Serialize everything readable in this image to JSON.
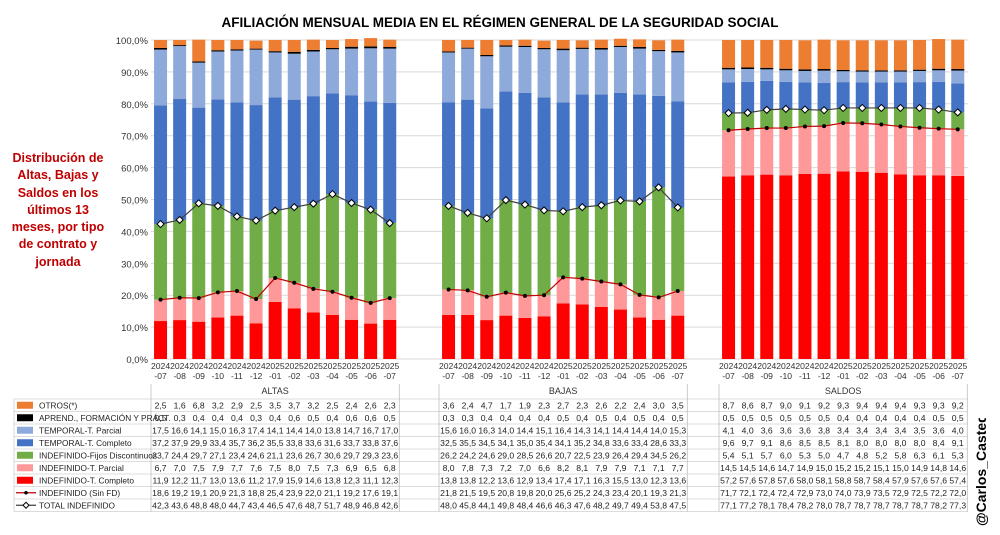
{
  "chart_data": {
    "type": "stacked-bar",
    "title": "AFILIACIÓN MENSUAL MEDIA EN EL RÉGIMEN GENERAL DE LA SEGURIDAD SOCIAL",
    "side_note": "Distribución de Altas, Bajas y Saldos en los últimos 13 meses, por tipo de contrato y jornada",
    "author": "@Carlos_Castedo",
    "y_ticks": [
      "0,0%",
      "10,0%",
      "20,0%",
      "30,0%",
      "40,0%",
      "50,0%",
      "60,0%",
      "70,0%",
      "80,0%",
      "90,0%",
      "100,0%"
    ],
    "ylim": [
      0,
      100
    ],
    "months": [
      "2024 -07",
      "2024 -08",
      "2024 -09",
      "2024 -10",
      "2024 -11",
      "2024 -12",
      "2025 -01",
      "2025 -02",
      "2025 -03",
      "2025 -04",
      "2025 -05",
      "2025 -06",
      "2025 -07"
    ],
    "groups": [
      "ALTAS",
      "BAJAS",
      "SALDOS"
    ],
    "series": [
      {
        "name": "OTROS(*)",
        "color": "#ed7d31",
        "kind": "bar",
        "values": [
          [
            2.5,
            1.6,
            6.8,
            3.2,
            2.9,
            2.5,
            3.5,
            3.7,
            3.2,
            2.5,
            2.4,
            2.6,
            2.3
          ],
          [
            3.6,
            2.4,
            4.7,
            1.7,
            1.9,
            2.3,
            2.7,
            2.3,
            2.6,
            2.2,
            2.4,
            3.0,
            3.5
          ],
          [
            8.7,
            8.6,
            8.7,
            9.0,
            9.1,
            9.2,
            9.3,
            9.4,
            9.4,
            9.4,
            9.3,
            9.3,
            9.2
          ]
        ]
      },
      {
        "name": "APREND., FORMACIÓN Y PRÁCT.",
        "color": "#000000",
        "kind": "bar",
        "values": [
          [
            0.5,
            0.3,
            0.4,
            0.4,
            0.4,
            0.3,
            0.4,
            0.6,
            0.5,
            0.4,
            0.6,
            0.6,
            0.5
          ],
          [
            0.3,
            0.3,
            0.4,
            0.4,
            0.4,
            0.4,
            0.5,
            0.4,
            0.5,
            0.4,
            0.5,
            0.4,
            0.5
          ],
          [
            0.5,
            0.5,
            0.5,
            0.5,
            0.5,
            0.5,
            0.4,
            0.4,
            0.4,
            0.4,
            0.4,
            0.5,
            0.5
          ]
        ]
      },
      {
        "name": "TEMPORAL-T. Parcial",
        "color": "#8eaadb",
        "kind": "bar",
        "values": [
          [
            17.5,
            16.6,
            14.1,
            15.0,
            16.3,
            17.4,
            14.1,
            14.4,
            14.0,
            13.8,
            14.7,
            16.7,
            17.0
          ],
          [
            15.6,
            16.0,
            16.3,
            14.0,
            14.4,
            15.1,
            16.4,
            14.3,
            14.1,
            14.4,
            14.4,
            14.0,
            15.3
          ],
          [
            4.1,
            4.0,
            3.6,
            3.6,
            3.6,
            3.8,
            3.4,
            3.4,
            3.4,
            3.4,
            3.5,
            3.6,
            4.0
          ]
        ]
      },
      {
        "name": "TEMPORAL-T. Completo",
        "color": "#4472c4",
        "kind": "bar",
        "values": [
          [
            37.2,
            37.9,
            29.9,
            33.4,
            35.7,
            36.2,
            35.5,
            33.8,
            33.6,
            31.6,
            33.7,
            33.8,
            37.6
          ],
          [
            32.5,
            35.5,
            34.5,
            34.1,
            35.0,
            35.4,
            34.1,
            35.2,
            34.8,
            33.6,
            33.4,
            28.6,
            33.3
          ],
          [
            9.6,
            9.7,
            9.1,
            8.6,
            8.5,
            8.5,
            8.1,
            8.0,
            8.0,
            8.0,
            8.0,
            8.4,
            9.1
          ]
        ]
      },
      {
        "name": "INDEFINIDO-Fijos Discontinuos",
        "color": "#70ad47",
        "kind": "bar",
        "values": [
          [
            23.7,
            24.4,
            29.7,
            27.1,
            23.4,
            24.6,
            21.1,
            23.6,
            26.7,
            30.6,
            29.7,
            29.3,
            23.6
          ],
          [
            26.2,
            24.2,
            24.6,
            29.0,
            28.5,
            26.6,
            20.7,
            22.5,
            23.9,
            26.4,
            29.4,
            34.5,
            26.2
          ],
          [
            5.4,
            5.1,
            5.7,
            6.0,
            5.3,
            5.0,
            4.7,
            4.8,
            5.2,
            5.8,
            6.3,
            6.1,
            5.3
          ]
        ]
      },
      {
        "name": "INDEFINIDO-T. Parcial",
        "color": "#ff9999",
        "kind": "bar",
        "values": [
          [
            6.7,
            7.0,
            7.5,
            7.9,
            7.7,
            7.6,
            7.5,
            8.0,
            7.5,
            7.3,
            6.9,
            6.5,
            6.8
          ],
          [
            8.0,
            7.8,
            7.3,
            7.2,
            7.0,
            6.6,
            8.2,
            8.1,
            7.9,
            7.9,
            7.1,
            7.1,
            7.7
          ],
          [
            14.5,
            14.5,
            14.6,
            14.7,
            14.9,
            15.0,
            15.2,
            15.2,
            15.1,
            15.0,
            14.9,
            14.8,
            14.6
          ]
        ]
      },
      {
        "name": "INDEFINIDO-T. Completo",
        "color": "#ff0000",
        "kind": "bar",
        "values": [
          [
            11.9,
            12.2,
            11.7,
            13.0,
            13.6,
            11.2,
            17.9,
            15.9,
            14.6,
            13.8,
            12.3,
            11.1,
            12.3
          ],
          [
            13.8,
            13.8,
            12.2,
            13.6,
            12.9,
            13.4,
            17.4,
            17.1,
            16.3,
            15.5,
            13.0,
            12.3,
            13.6
          ],
          [
            57.2,
            57.6,
            57.8,
            57.6,
            58.0,
            58.1,
            58.8,
            58.7,
            58.4,
            57.9,
            57.6,
            57.6,
            57.4
          ]
        ]
      },
      {
        "name": "INDEFINIDO (Sin FD)",
        "color": "#c00000",
        "kind": "line",
        "values": [
          [
            18.6,
            19.2,
            19.1,
            20.9,
            21.3,
            18.8,
            25.4,
            23.9,
            22.0,
            21.1,
            19.2,
            17.6,
            19.1
          ],
          [
            21.8,
            21.5,
            19.5,
            20.8,
            19.8,
            20.0,
            25.6,
            25.2,
            24.3,
            23.4,
            20.1,
            19.3,
            21.3
          ],
          [
            71.7,
            72.1,
            72.4,
            72.4,
            72.9,
            73.0,
            74.0,
            73.9,
            73.5,
            72.9,
            72.5,
            72.2,
            72.0
          ]
        ]
      },
      {
        "name": "TOTAL INDEFINIDO",
        "color": "#404040",
        "kind": "line",
        "values": [
          [
            42.3,
            43.6,
            48.8,
            48.0,
            44.7,
            43.4,
            46.5,
            47.6,
            48.7,
            51.7,
            48.9,
            46.8,
            42.6
          ],
          [
            48.0,
            45.8,
            44.1,
            49.8,
            48.4,
            46.6,
            46.3,
            47.6,
            48.2,
            49.7,
            49.4,
            53.8,
            47.5
          ],
          [
            77.1,
            77.2,
            78.1,
            78.4,
            78.2,
            78.0,
            78.7,
            78.7,
            78.7,
            78.7,
            78.7,
            78.2,
            77.3
          ]
        ]
      }
    ]
  }
}
